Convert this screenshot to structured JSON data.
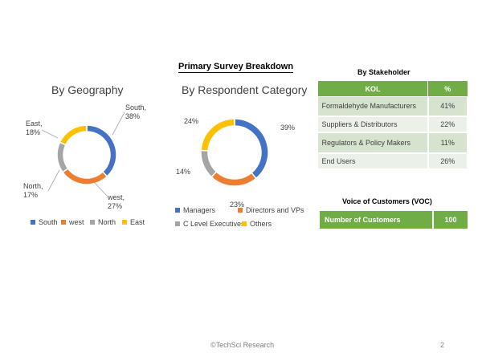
{
  "page_title": "Primary Survey Breakdown",
  "chart_data": [
    {
      "type": "pie",
      "title": "By Geography",
      "categories": [
        "South",
        "west",
        "North",
        "East"
      ],
      "values": [
        38,
        27,
        17,
        18
      ],
      "labels": [
        "South, 38%",
        "west, 27%",
        "North, 17%",
        "East, 18%"
      ],
      "colors": [
        "#4472c4",
        "#ed7d31",
        "#a5a5a5",
        "#ffc000"
      ],
      "legend": "bottom"
    },
    {
      "type": "pie",
      "title": "By Respondent Category",
      "categories": [
        "Managers",
        "Directors and VPs",
        "C Level Executives",
        "Others"
      ],
      "values": [
        39,
        23,
        14,
        24
      ],
      "labels": [
        "39%",
        "23%",
        "14%",
        "24%"
      ],
      "colors": [
        "#4472c4",
        "#ed7d31",
        "#a5a5a5",
        "#ffc000"
      ],
      "legend": "bottom"
    }
  ],
  "stakeholder": {
    "heading": "By Stakeholder",
    "columns": [
      "KOL",
      "%"
    ],
    "rows": [
      {
        "name": "Formaldehyde Manufacturers",
        "pct": "41%"
      },
      {
        "name": "Suppliers & Distributors",
        "pct": "22%"
      },
      {
        "name": "Regulators & Policy Makers",
        "pct": "11%"
      },
      {
        "name": "End Users",
        "pct": "26%"
      }
    ]
  },
  "voc": {
    "heading": "Voice of Customers (VOC)",
    "label": "Number of Customers",
    "value": "100"
  },
  "footer": {
    "source": "©TechSci Research",
    "page_number": "2"
  }
}
